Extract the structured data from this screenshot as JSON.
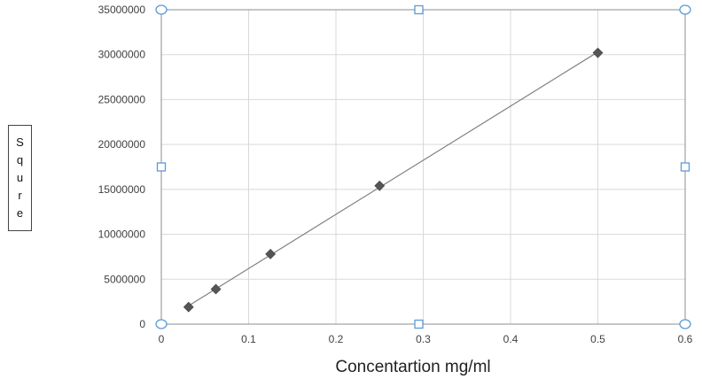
{
  "chart_data": {
    "type": "scatter",
    "xlabel": "Concentartion mg/ml",
    "ylabel": "Squre",
    "xlim": [
      0,
      0.6
    ],
    "ylim": [
      0,
      35000000
    ],
    "x_ticks": [
      "0",
      "0.1",
      "0.2",
      "0.3",
      "0.4",
      "0.5",
      "0.6"
    ],
    "y_ticks": [
      "0",
      "5000000",
      "10000000",
      "15000000",
      "20000000",
      "25000000",
      "30000000",
      "35000000"
    ],
    "grid": true,
    "marker": "diamond",
    "trendline": "linear",
    "series": [
      {
        "x": [
          0.03125,
          0.0625,
          0.125,
          0.25,
          0.5
        ],
        "y": [
          1900000,
          3900000,
          7800000,
          15400000,
          30200000
        ]
      }
    ],
    "colors": {
      "marker": "#555555",
      "line": "#808080",
      "grid": "#d9d9d9",
      "handle": "#5b9bd5"
    }
  }
}
